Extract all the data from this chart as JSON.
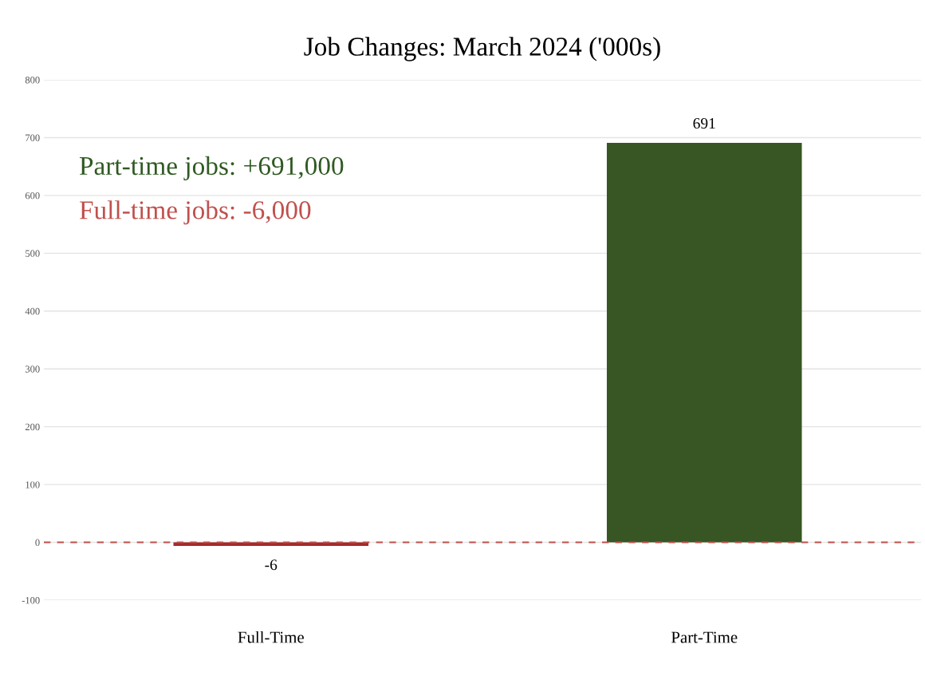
{
  "chart_data": {
    "type": "bar",
    "title": "Job Changes: March 2024 ('000s)",
    "categories": [
      "Full-Time",
      "Part-Time"
    ],
    "values": [
      -6,
      691
    ],
    "colors": [
      "#a52a2a",
      "#375623"
    ],
    "ylim": [
      -100,
      800
    ],
    "yticks": [
      -100,
      0,
      100,
      200,
      300,
      400,
      500,
      600,
      700,
      800
    ],
    "grid": "y",
    "data_labels": true,
    "ref_lines": [
      {
        "axis": "y",
        "value": 0,
        "color": "#c0504d",
        "line_style": "dashed"
      }
    ],
    "annotations": [
      "Part-time jobs: +691,000",
      "Full-time jobs: -6,000"
    ]
  }
}
